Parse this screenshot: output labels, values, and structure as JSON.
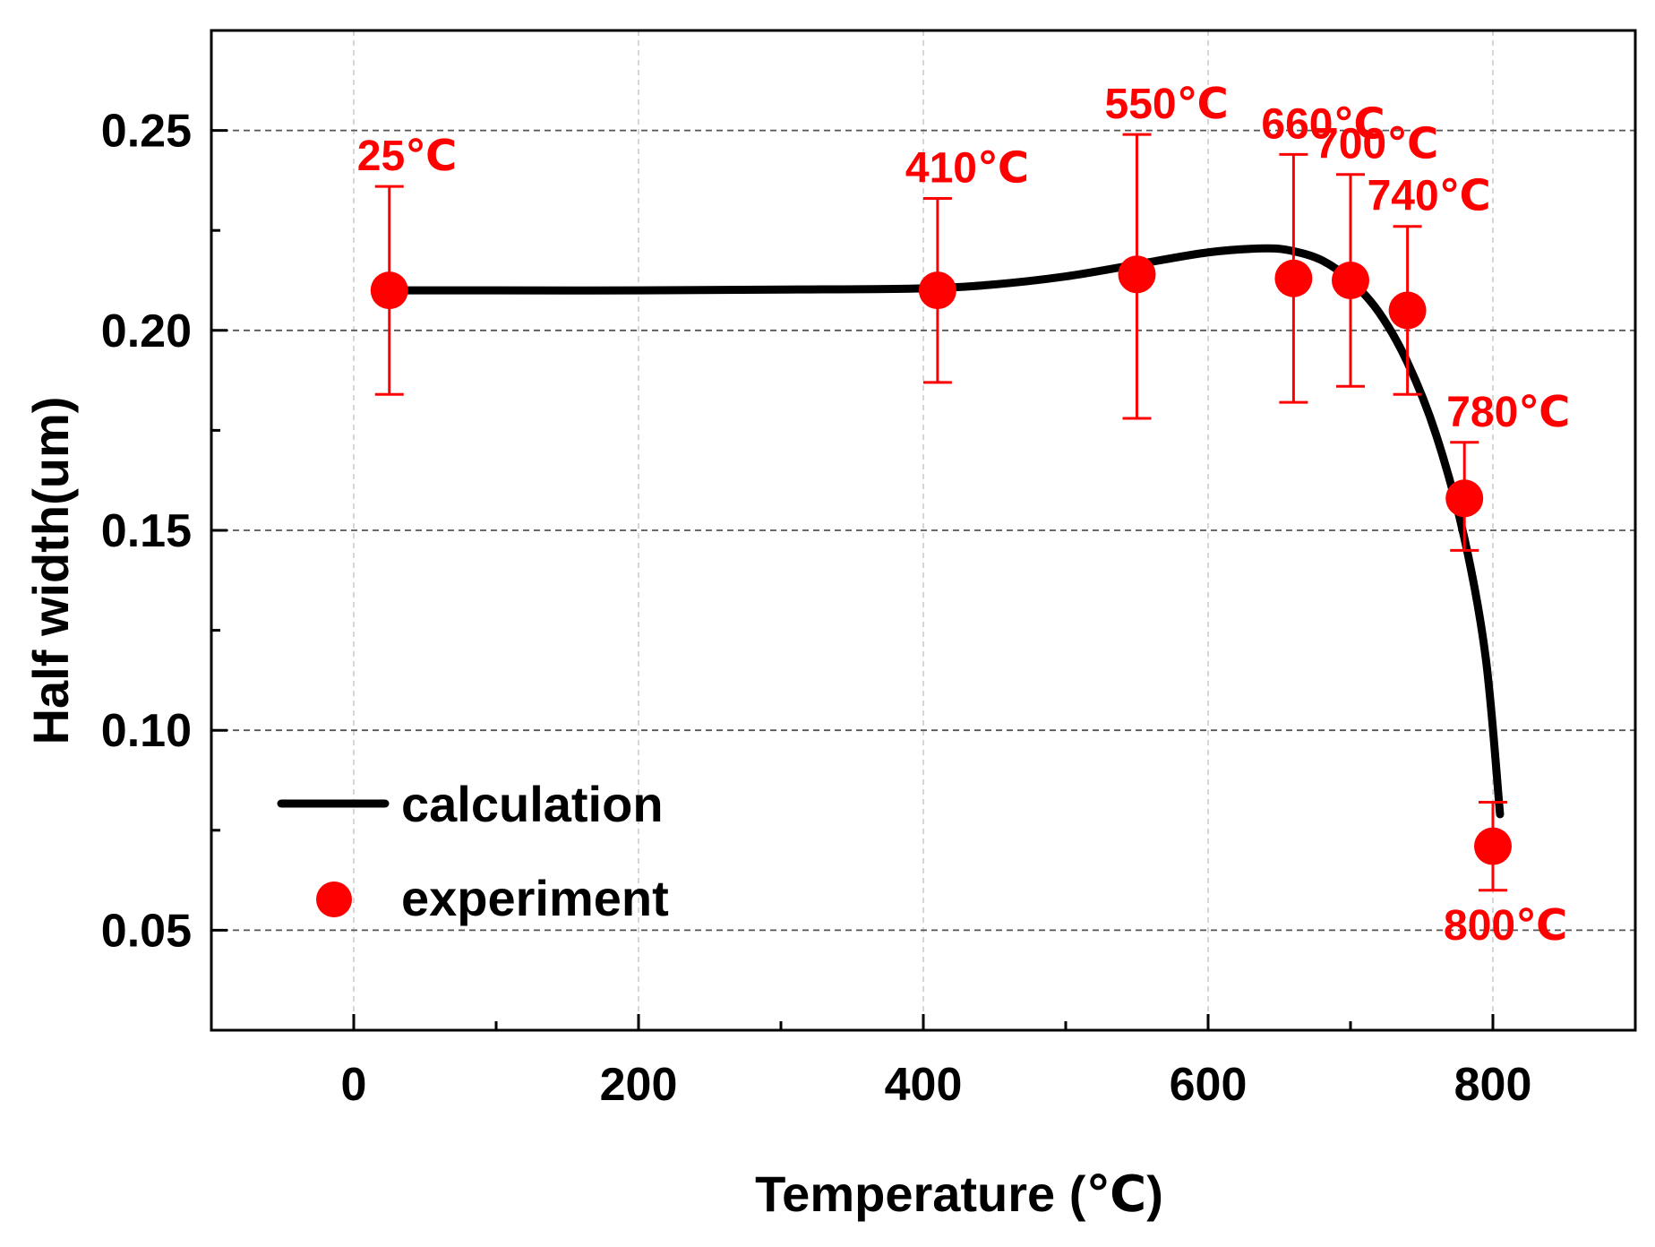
{
  "chart_data": {
    "type": "scatter",
    "title": "",
    "xlabel": "Temperature (℃)",
    "ylabel": "Half width(um)",
    "xlim": [
      -100,
      900
    ],
    "ylim": [
      0.025,
      0.275
    ],
    "grid": true,
    "legend_position": "bottom-left",
    "x_ticks": [
      0,
      200,
      400,
      600,
      800
    ],
    "y_ticks": [
      0.05,
      0.1,
      0.15,
      0.2,
      0.25
    ],
    "x_tick_labels": [
      "0",
      "200",
      "400",
      "600",
      "800"
    ],
    "y_tick_labels": [
      "0.05",
      "0.10",
      "0.15",
      "0.20",
      "0.25"
    ],
    "colors": {
      "calculation": "#000000",
      "experiment": "#ff0000"
    },
    "series": [
      {
        "name": "calculation",
        "type": "line",
        "x": [
          25,
          100,
          200,
          300,
          400,
          450,
          500,
          550,
          600,
          640,
          660,
          680,
          700,
          720,
          740,
          760,
          780,
          795,
          805
        ],
        "y": [
          0.21,
          0.21,
          0.21,
          0.2102,
          0.2105,
          0.2115,
          0.2135,
          0.2165,
          0.2195,
          0.2205,
          0.2198,
          0.2175,
          0.2125,
          0.2045,
          0.192,
          0.174,
          0.148,
          0.118,
          0.079
        ]
      },
      {
        "name": "experiment",
        "type": "scatter",
        "x": [
          25,
          410,
          550,
          660,
          700,
          740,
          780,
          800
        ],
        "y": [
          0.21,
          0.21,
          0.214,
          0.213,
          0.2125,
          0.205,
          0.158,
          0.071
        ],
        "err_upper": [
          0.236,
          0.233,
          0.249,
          0.244,
          0.239,
          0.226,
          0.172,
          0.082
        ],
        "err_lower": [
          0.184,
          0.187,
          0.178,
          0.182,
          0.186,
          0.184,
          0.145,
          0.06
        ],
        "labels": [
          "25℃",
          "410℃",
          "550℃",
          "660℃",
          "700℃",
          "740℃",
          "780℃",
          "800℃"
        ]
      }
    ]
  }
}
